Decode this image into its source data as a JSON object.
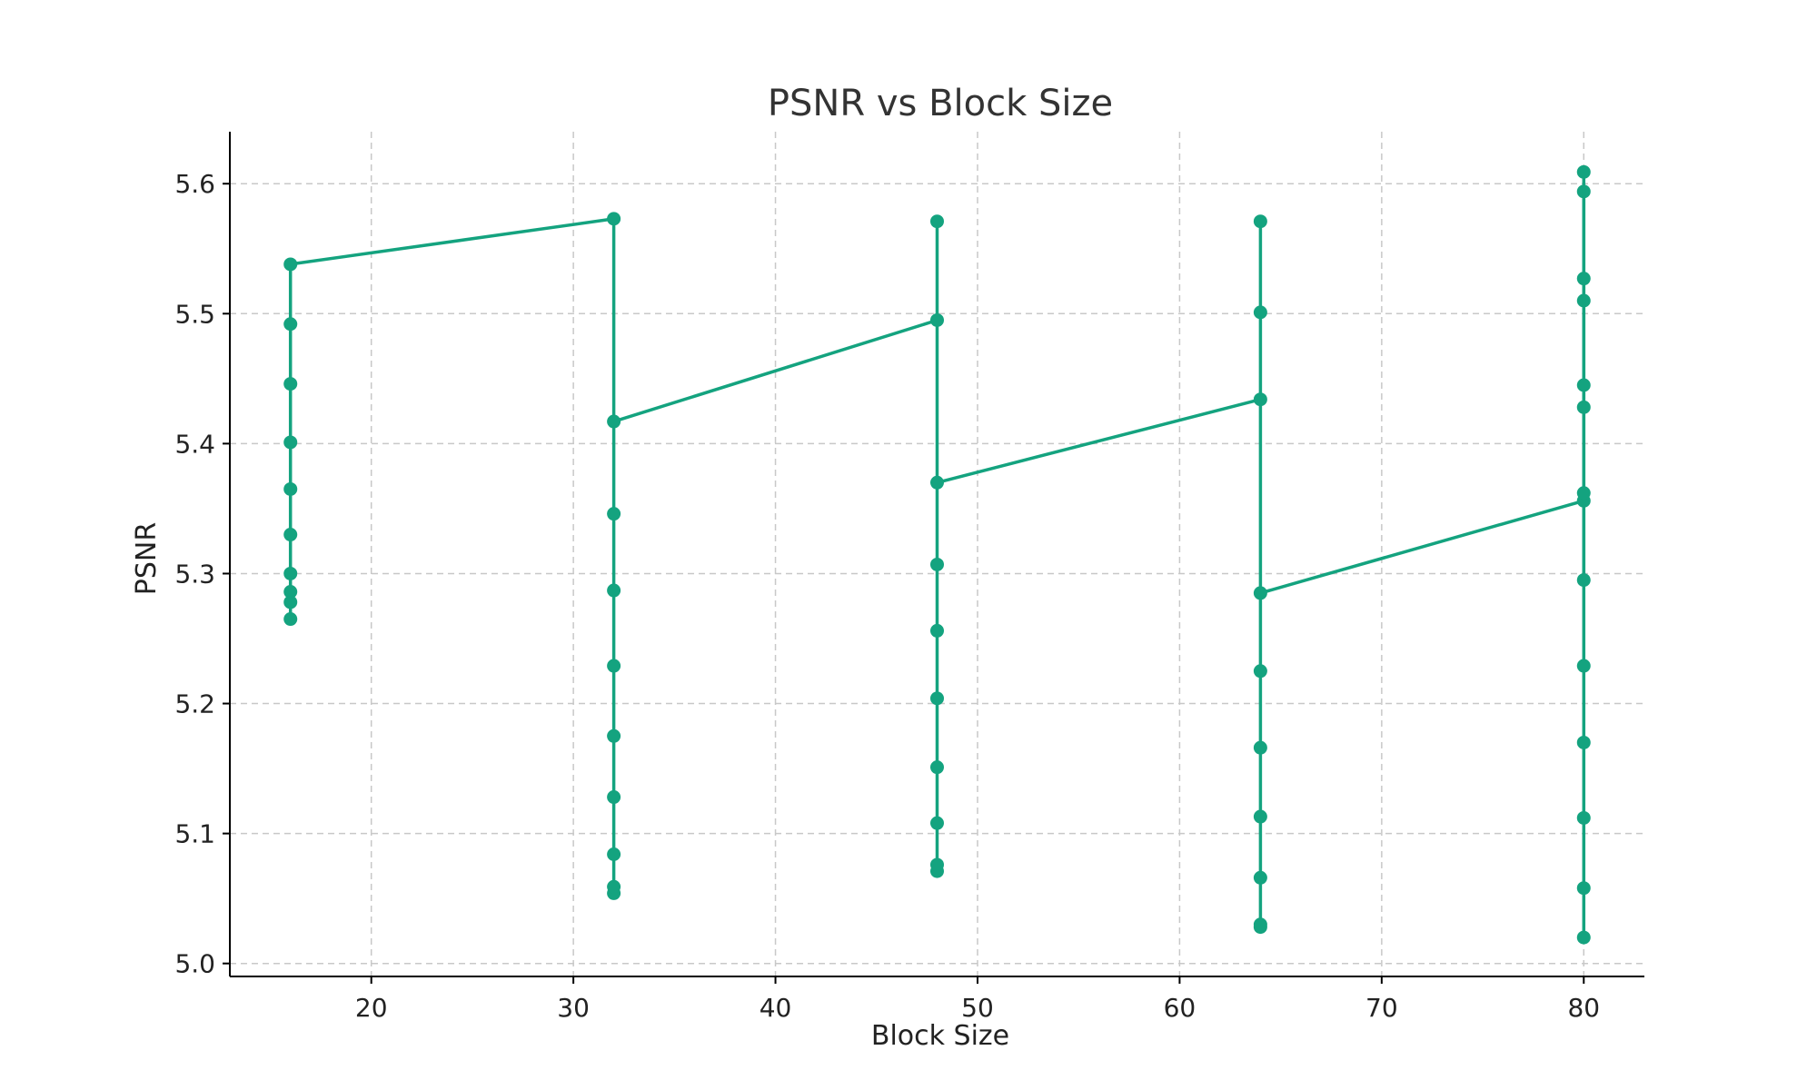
{
  "chart_data": {
    "type": "line",
    "title": "PSNR vs Block Size",
    "xlabel": "Block Size",
    "ylabel": "PSNR",
    "xlim": [
      13,
      83
    ],
    "ylim": [
      4.99,
      5.64
    ],
    "xticks": [
      20,
      30,
      40,
      50,
      60,
      70,
      80
    ],
    "yticks": [
      5.0,
      5.1,
      5.2,
      5.3,
      5.4,
      5.5,
      5.6
    ],
    "grid": true,
    "legend": "none",
    "marker": "circle",
    "color": "#14a37f",
    "series": [
      {
        "x": [
          16,
          16,
          16,
          16,
          16,
          16,
          16,
          16,
          16,
          16,
          32,
          32,
          32,
          32,
          32,
          32,
          32,
          32,
          32,
          32,
          48,
          48,
          48,
          48,
          48,
          48,
          48,
          48,
          48,
          48,
          64,
          64,
          64,
          64,
          64,
          64,
          64,
          64,
          64,
          64,
          80,
          80,
          80,
          80,
          80,
          80,
          80,
          80,
          80,
          80
        ],
        "y": [
          5.265,
          5.278,
          5.286,
          5.3,
          5.33,
          5.365,
          5.401,
          5.446,
          5.492,
          5.538,
          5.573,
          5.054,
          5.059,
          5.084,
          5.128,
          5.175,
          5.229,
          5.287,
          5.346,
          5.417,
          5.495,
          5.571,
          5.071,
          5.076,
          5.108,
          5.151,
          5.204,
          5.256,
          5.307,
          5.37,
          5.434,
          5.501,
          5.571,
          5.028,
          5.03,
          5.066,
          5.113,
          5.166,
          5.225,
          5.285,
          5.356,
          5.428,
          5.51,
          5.594,
          5.02,
          5.058,
          5.112,
          5.17,
          5.229,
          5.295
        ]
      }
    ],
    "extra_points": [
      {
        "x": 80,
        "y": 5.362
      },
      {
        "x": 80,
        "y": 5.445
      },
      {
        "x": 80,
        "y": 5.527
      },
      {
        "x": 80,
        "y": 5.609
      }
    ]
  }
}
